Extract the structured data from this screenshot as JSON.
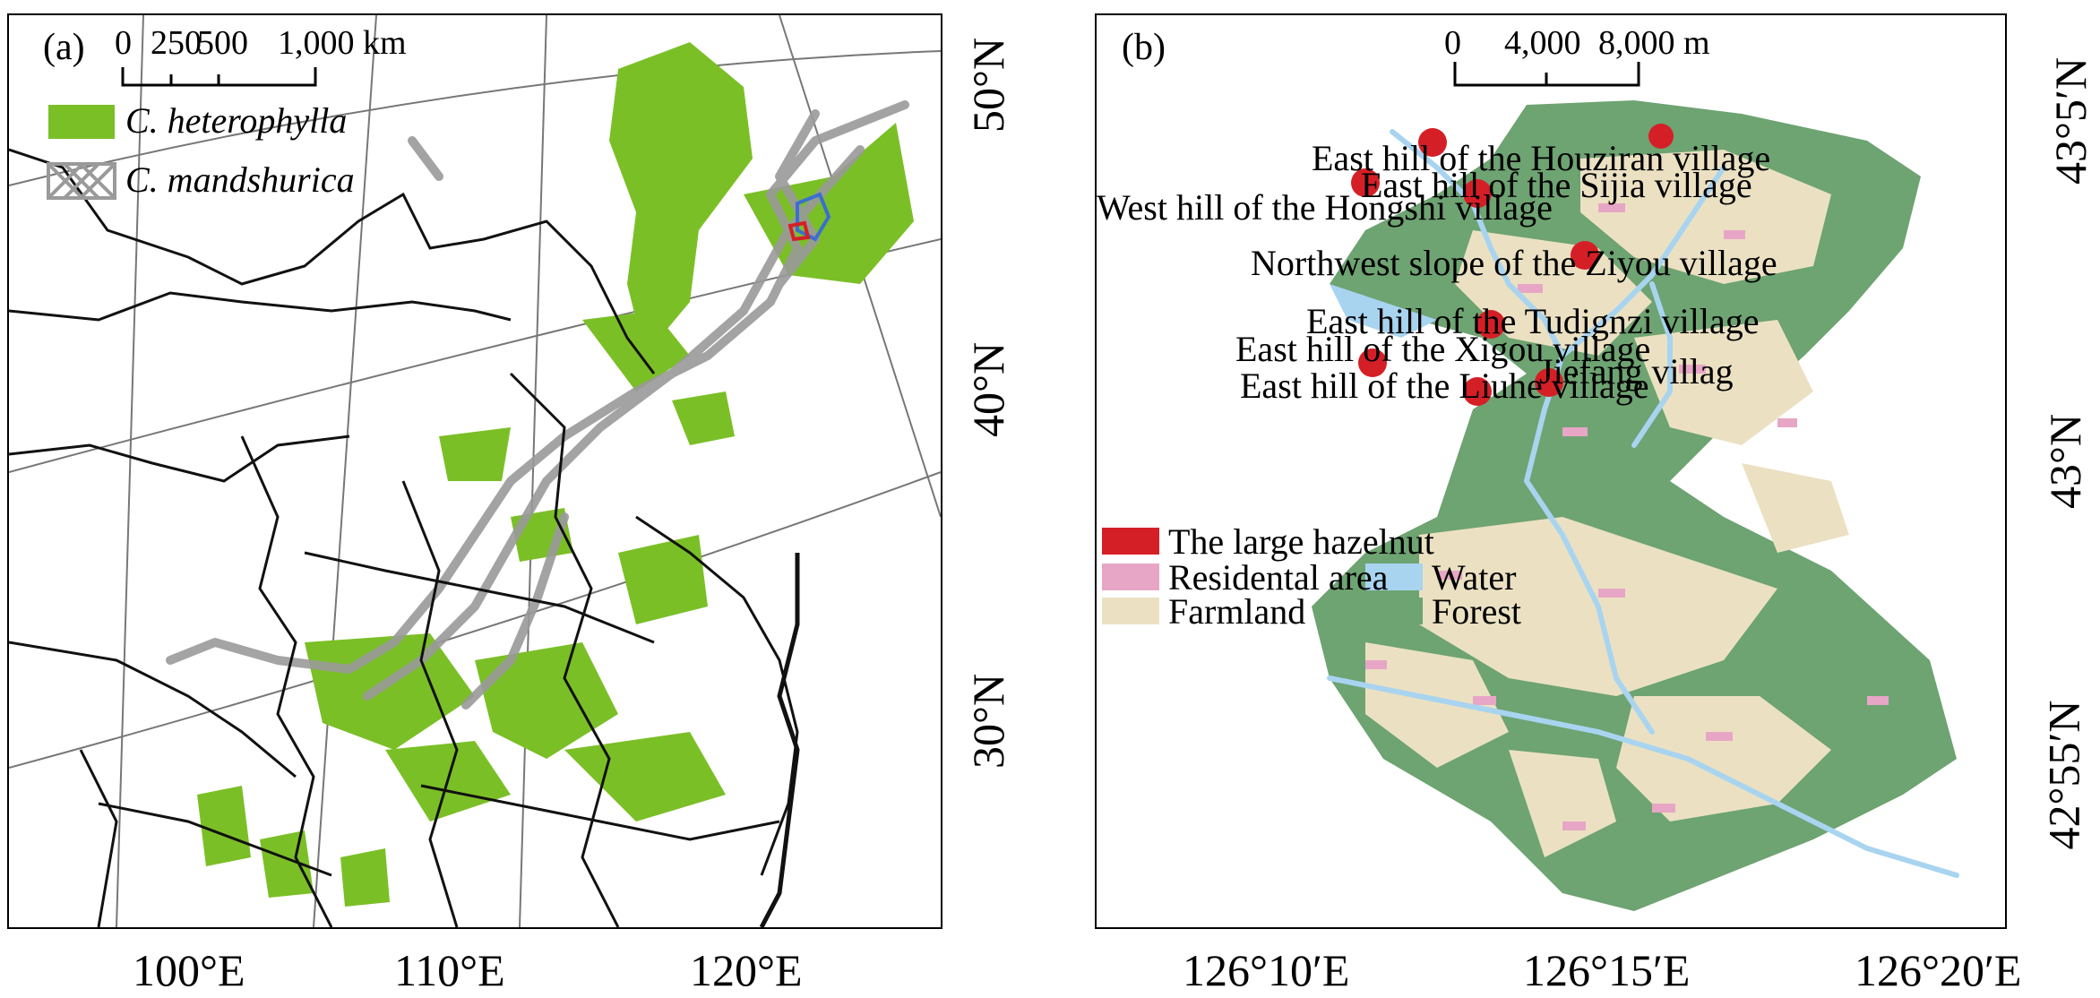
{
  "panel_a": {
    "letter": "(a)",
    "scale_labels": [
      "0",
      "250",
      "500",
      "1,000 km"
    ],
    "legend": [
      {
        "label": "C. heterophylla",
        "color": "#7bbf27",
        "pattern": "solid"
      },
      {
        "label": "C. mandshurica",
        "color": "#9a9a9a",
        "pattern": "crosshatch"
      }
    ],
    "lon_labels": [
      "100°E",
      "110°E",
      "120°E"
    ],
    "lat_labels": [
      "50°N",
      "40°N",
      "30°N"
    ]
  },
  "panel_b": {
    "letter": "(b)",
    "scale_labels": [
      "0",
      "4,000",
      "8,000 m"
    ],
    "legend": [
      {
        "label": "The large hazelnut",
        "color": "#d51f26"
      },
      {
        "label": "Residental area",
        "color": "#e8a6c6"
      },
      {
        "label": "Water",
        "color": "#a8d4f0"
      },
      {
        "label": "Farmland",
        "color": "#ebe1c2"
      },
      {
        "label": "Forest",
        "color": "#6ea372"
      }
    ],
    "sites": [
      "East hill of the Houziran village",
      "East hill of the Sijia village",
      "West hill of the Hongshi village",
      "Northwest slope of the Ziyou village",
      "East hill of the Tudignzi village",
      "East hill of the Xigou village",
      "Jiefang villag",
      "East hill of the Liuhe village"
    ],
    "lon_labels": [
      "126°10′E",
      "126°15′E",
      "126°20′E"
    ],
    "lat_labels": [
      "43°5′N",
      "43°N",
      "42°55′N"
    ]
  }
}
